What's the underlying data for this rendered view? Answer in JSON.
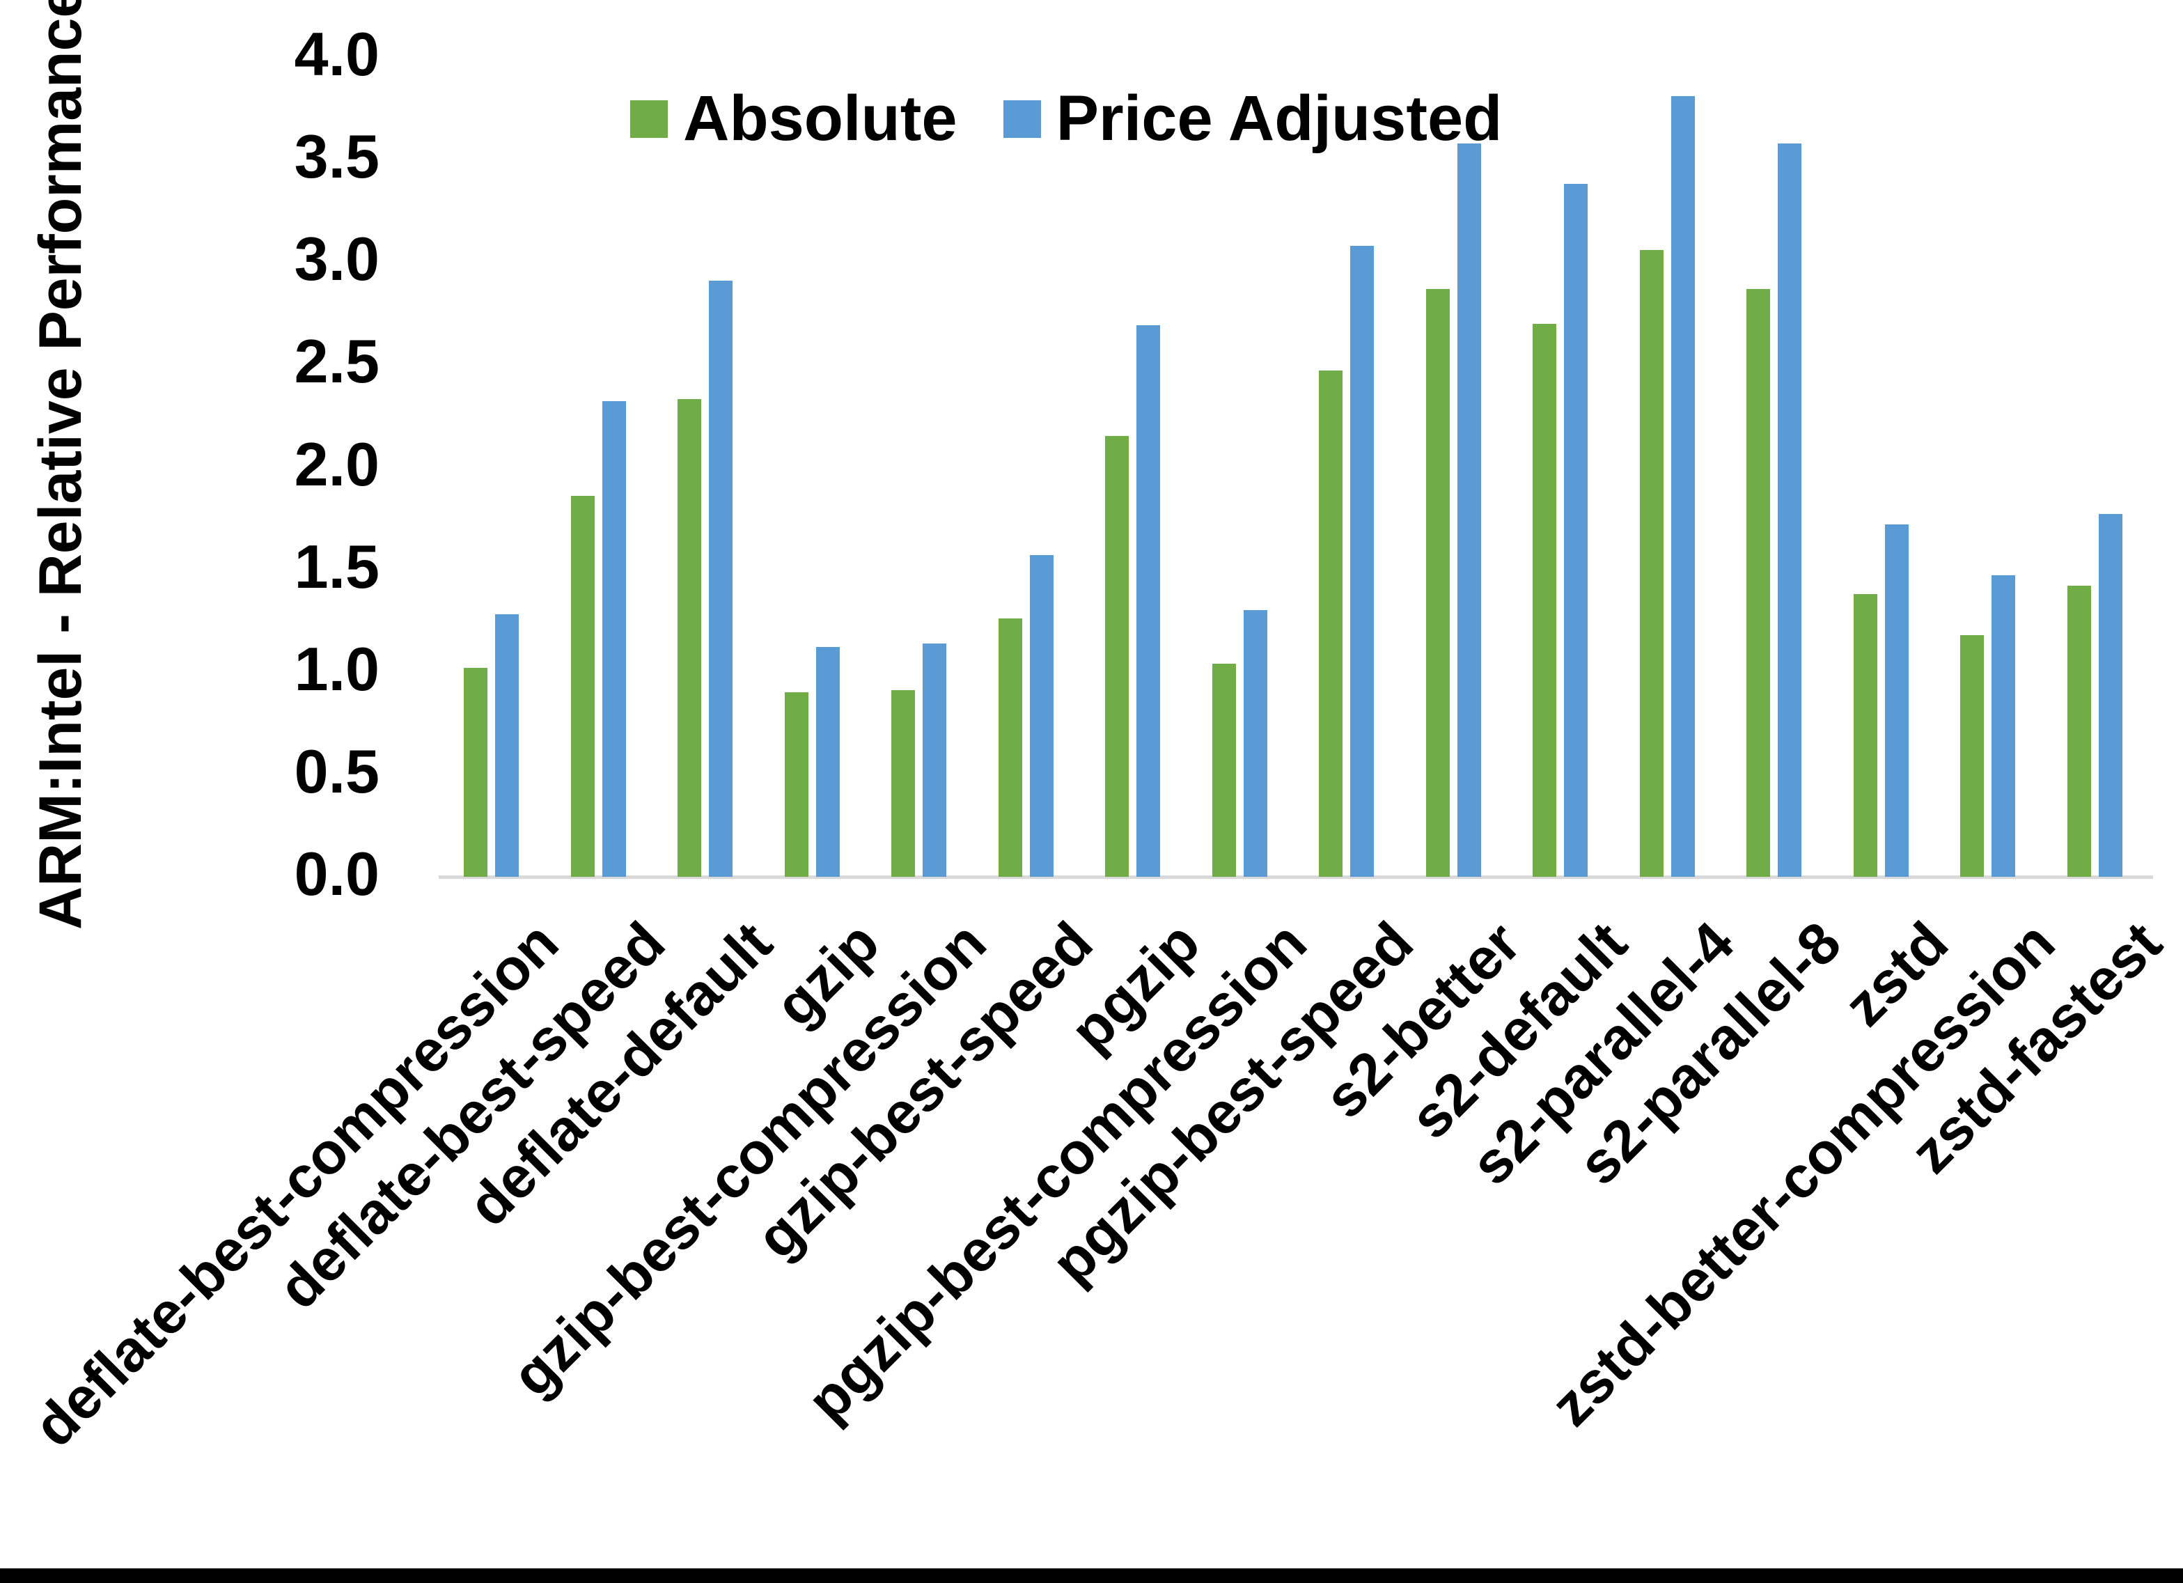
{
  "chart_data": {
    "type": "bar",
    "title": "",
    "ylabel": "ARM:Intel - Relative Performance",
    "xlabel": "",
    "ylim": [
      0.0,
      4.0
    ],
    "ytick_step": 0.5,
    "ytick_labels": [
      "0.0",
      "0.5",
      "1.0",
      "1.5",
      "2.0",
      "2.5",
      "3.0",
      "3.5",
      "4.0"
    ],
    "grid": false,
    "legend_position": "top-center",
    "categories": [
      "deflate-best-compression",
      "deflate-best-speed",
      "deflate-default",
      "gzip",
      "gzip-best-compression",
      "gzip-best-speed",
      "pgzip",
      "pgzip-best-compression",
      "pgzip-best-speed",
      "s2-better",
      "s2-default",
      "s2-parallel-4",
      "s2-parallel-8",
      "zstd",
      "zstd-better-compression",
      "zstd-fastest"
    ],
    "series": [
      {
        "name": "Absolute",
        "color": "#70AD47",
        "values": [
          1.02,
          1.86,
          2.33,
          0.9,
          0.91,
          1.26,
          2.15,
          1.04,
          2.47,
          2.87,
          2.7,
          3.06,
          2.87,
          1.38,
          1.18,
          1.42
        ]
      },
      {
        "name": "Price Adjusted",
        "color": "#5B9BD5",
        "values": [
          1.28,
          2.32,
          2.91,
          1.12,
          1.14,
          1.57,
          2.69,
          1.3,
          3.08,
          3.58,
          3.38,
          3.81,
          3.58,
          1.72,
          1.47,
          1.77
        ]
      }
    ]
  },
  "colors": {
    "background": "#FFFFFF",
    "axis_line": "#D9D9D9",
    "text": "#000000",
    "bottom_bar": "#000000"
  },
  "legend": {
    "absolute_label": "Absolute",
    "price_adjusted_label": "Price Adjusted"
  }
}
